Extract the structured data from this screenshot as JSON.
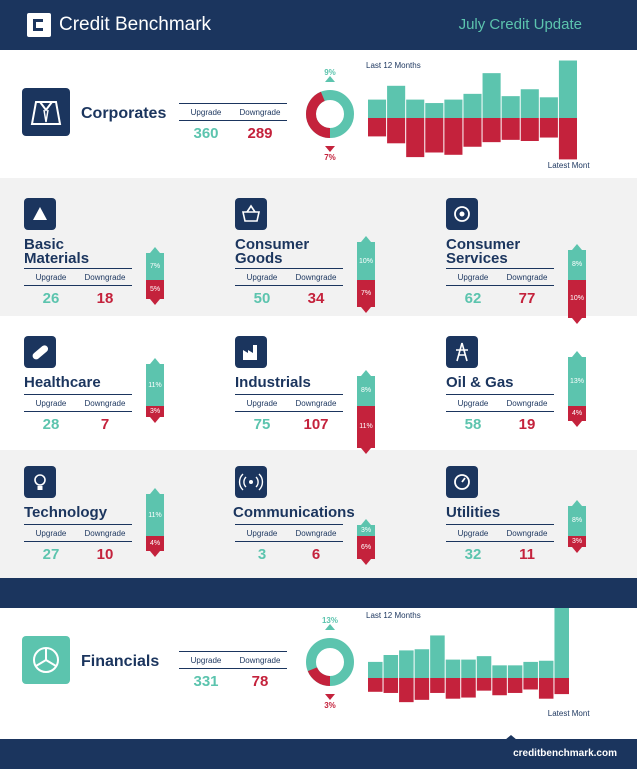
{
  "header": {
    "brand": "Credit Benchmark",
    "update": "July Credit Update"
  },
  "corporates": {
    "title": "Corporates",
    "upgrade_label": "Upgrade",
    "downgrade_label": "Downgrade",
    "upgrade": "360",
    "downgrade": "289",
    "donut_up_label": "9%",
    "donut_down_label": "7%",
    "donut_up": 9,
    "donut_down": 7,
    "bars_title": "Last 12 Months",
    "bars_latest": "Latest Month",
    "bars_up": [
      16,
      28,
      16,
      13,
      16,
      21,
      39,
      19,
      25,
      18,
      50
    ],
    "bars_down": [
      16,
      22,
      34,
      30,
      32,
      25,
      21,
      19,
      20,
      17,
      36
    ]
  },
  "financials": {
    "title": "Financials",
    "upgrade_label": "Upgrade",
    "downgrade_label": "Downgrade",
    "upgrade": "331",
    "downgrade": "78",
    "donut_up_label": "13%",
    "donut_down_label": "3%",
    "donut_up": 13,
    "donut_down": 3,
    "bars_title": "Last 12 Months",
    "bars_latest": "Latest Month",
    "bars_up": [
      14,
      20,
      24,
      25,
      37,
      16,
      16,
      19,
      11,
      11,
      14,
      15,
      66
    ],
    "bars_down": [
      12,
      13,
      21,
      19,
      13,
      18,
      17,
      11,
      15,
      13,
      10,
      18,
      14
    ]
  },
  "sectors": [
    {
      "name": "Basic\nMaterials",
      "icon": "triangle-icon",
      "upgrade": "26",
      "downgrade": "18",
      "up_pct": "7%",
      "down_pct": "5%",
      "up_val": 7,
      "down_val": 5
    },
    {
      "name": "Consumer\nGoods",
      "icon": "basket-icon",
      "upgrade": "50",
      "downgrade": "34",
      "up_pct": "10%",
      "down_pct": "7%",
      "up_val": 10,
      "down_val": 7
    },
    {
      "name": "Consumer\nServices",
      "icon": "services-icon",
      "upgrade": "62",
      "downgrade": "77",
      "up_pct": "8%",
      "down_pct": "10%",
      "up_val": 8,
      "down_val": 10
    },
    {
      "name": "Healthcare",
      "icon": "pill-icon",
      "upgrade": "28",
      "downgrade": "7",
      "up_pct": "11%",
      "down_pct": "3%",
      "up_val": 11,
      "down_val": 3
    },
    {
      "name": "Industrials",
      "icon": "factory-icon",
      "upgrade": "75",
      "downgrade": "107",
      "up_pct": "8%",
      "down_pct": "11%",
      "up_val": 8,
      "down_val": 11
    },
    {
      "name": "Oil & Gas",
      "icon": "oil-rig-icon",
      "upgrade": "58",
      "downgrade": "19",
      "up_pct": "13%",
      "down_pct": "4%",
      "up_val": 13,
      "down_val": 4
    },
    {
      "name": "Technology",
      "icon": "lightbulb-icon",
      "upgrade": "27",
      "downgrade": "10",
      "up_pct": "11%",
      "down_pct": "4%",
      "up_val": 11,
      "down_val": 4
    },
    {
      "name": "Communications",
      "icon": "signal-icon",
      "upgrade": "3",
      "downgrade": "6",
      "up_pct": "3%",
      "down_pct": "6%",
      "up_val": 3,
      "down_val": 6
    },
    {
      "name": "Utilities",
      "icon": "gauge-icon",
      "upgrade": "32",
      "downgrade": "11",
      "up_pct": "8%",
      "down_pct": "3%",
      "up_val": 8,
      "down_val": 3
    }
  ],
  "labels": {
    "upgrade": "Upgrade",
    "downgrade": "Downgrade"
  },
  "footer": {
    "url": "creditbenchmark.com"
  },
  "colors": {
    "navy": "#1b355e",
    "teal": "#5cc4ae",
    "red": "#c4223c",
    "gray": "#f2f2f2"
  },
  "chart_data": [
    {
      "type": "bar",
      "title": "Last 12 Months",
      "series": [
        {
          "name": "Upgrade",
          "values": [
            16,
            28,
            16,
            13,
            16,
            21,
            39,
            19,
            25,
            18,
            50
          ]
        },
        {
          "name": "Downgrade",
          "values": [
            16,
            22,
            34,
            30,
            32,
            25,
            21,
            19,
            20,
            17,
            36
          ]
        }
      ]
    },
    {
      "type": "bar",
      "title": "Last 12 Months",
      "series": [
        {
          "name": "Upgrade",
          "values": [
            14,
            20,
            24,
            25,
            37,
            16,
            16,
            19,
            11,
            11,
            14,
            15,
            66
          ]
        },
        {
          "name": "Downgrade",
          "values": [
            12,
            13,
            21,
            19,
            13,
            18,
            17,
            11,
            15,
            13,
            10,
            18,
            14
          ]
        }
      ]
    }
  ]
}
